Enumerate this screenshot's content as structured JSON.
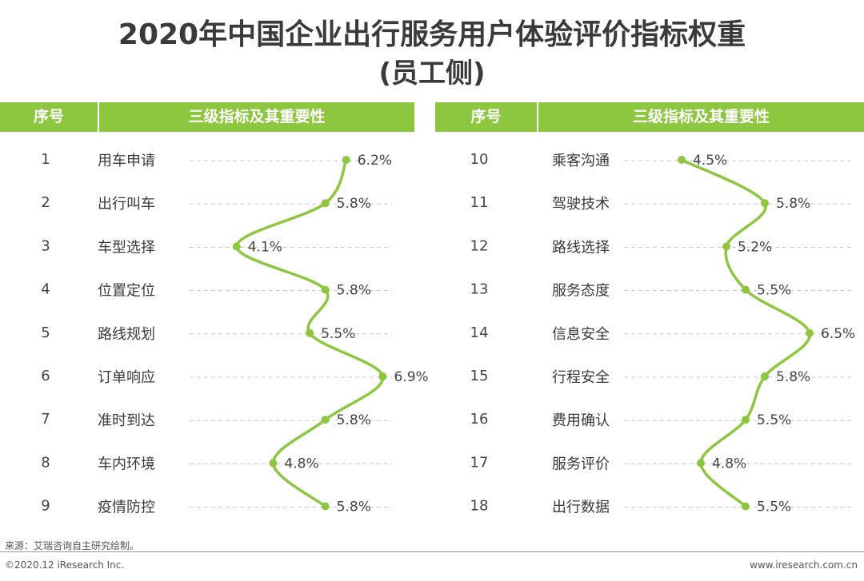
{
  "title_line1": "2020年中国企业出行服务用户体验评价指标权重",
  "title_line2": "(员工侧)",
  "table_headers": {
    "left": {
      "col1": "序号",
      "col2": "三级指标及其重要性"
    },
    "right": {
      "col1": "序号",
      "col2": "三级指标及其重要性"
    }
  },
  "colors": {
    "accent": "#8dc63f",
    "header_text": "#ffffff",
    "dash": "#c8c8c8"
  },
  "chart_data": [
    {
      "type": "line",
      "orientation": "vertical",
      "categories": [
        "用车申请",
        "出行叫车",
        "车型选择",
        "位置定位",
        "路线规划",
        "订单响应",
        "准时到达",
        "车内环境",
        "疫情防控"
      ],
      "index": [
        "1",
        "2",
        "3",
        "4",
        "5",
        "6",
        "7",
        "8",
        "9"
      ],
      "values": [
        6.2,
        5.8,
        4.1,
        5.8,
        5.5,
        6.9,
        5.8,
        4.8,
        5.8
      ],
      "labels": [
        "6.2%",
        "5.8%",
        "4.1%",
        "5.8%",
        "5.5%",
        "6.9%",
        "5.8%",
        "4.8%",
        "5.8%"
      ],
      "xlim": [
        3.2,
        7.0
      ]
    },
    {
      "type": "line",
      "orientation": "vertical",
      "categories": [
        "乘客沟通",
        "驾驶技术",
        "路线选择",
        "服务态度",
        "信息安全",
        "行程安全",
        "费用确认",
        "服务评价",
        "出行数据"
      ],
      "index": [
        "10",
        "11",
        "12",
        "13",
        "14",
        "15",
        "16",
        "17",
        "18"
      ],
      "values": [
        4.5,
        5.8,
        5.2,
        5.5,
        6.5,
        5.8,
        5.5,
        4.8,
        5.5
      ],
      "labels": [
        "4.5%",
        "5.8%",
        "5.2%",
        "5.5%",
        "6.5%",
        "5.8%",
        "5.5%",
        "4.8%",
        "5.5%"
      ],
      "xlim": [
        3.6,
        6.6
      ]
    }
  ],
  "footer": {
    "source": "来源：艾瑞咨询自主研究绘制。",
    "copyright": "©2020.12 iResearch Inc.",
    "website": "www.iresearch.com.cn"
  }
}
